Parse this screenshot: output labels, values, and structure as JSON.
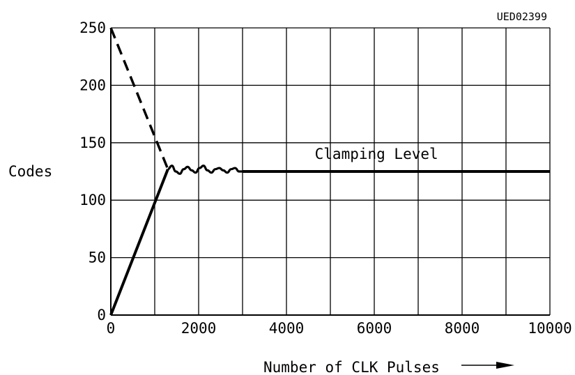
{
  "chart_data": {
    "type": "line",
    "reference_code": "UED02399",
    "title": "",
    "xlabel": "Number of CLK Pulses",
    "ylabel": "Codes",
    "xlim": [
      0,
      10000
    ],
    "ylim": [
      0,
      250
    ],
    "x_ticks": [
      0,
      2000,
      4000,
      6000,
      8000,
      10000
    ],
    "y_ticks": [
      0,
      50,
      100,
      150,
      200,
      250
    ],
    "x_tick_labels": [
      "0",
      "2000",
      "4000",
      "6000",
      "8000",
      "10000"
    ],
    "y_tick_labels": [
      "0",
      "50",
      "100",
      "150",
      "200",
      "250"
    ],
    "grid": true,
    "grid_x_step": 1000,
    "grid_y_step": 50,
    "annotations": [
      {
        "text": "Clamping Level",
        "x": 6050,
        "y": 136
      }
    ],
    "series": [
      {
        "style": "solid",
        "points": [
          [
            0,
            0
          ],
          [
            1300,
            127
          ]
        ]
      },
      {
        "style": "dashed",
        "points": [
          [
            0,
            250
          ],
          [
            1300,
            127
          ]
        ]
      },
      {
        "style": "oscillation",
        "points": [
          [
            1300,
            127
          ],
          [
            1390,
            130
          ],
          [
            1480,
            125
          ],
          [
            1570,
            123
          ],
          [
            1660,
            127
          ],
          [
            1750,
            129
          ],
          [
            1840,
            126
          ],
          [
            1930,
            124
          ],
          [
            2020,
            128
          ],
          [
            2110,
            130
          ],
          [
            2200,
            126
          ],
          [
            2290,
            124
          ],
          [
            2380,
            127
          ],
          [
            2470,
            128
          ],
          [
            2560,
            126
          ],
          [
            2650,
            124
          ],
          [
            2740,
            127
          ],
          [
            2830,
            128
          ],
          [
            2920,
            125
          ],
          [
            3000,
            125
          ]
        ]
      },
      {
        "style": "solid",
        "name": "Clamping Level",
        "points": [
          [
            3000,
            125
          ],
          [
            10000,
            125
          ]
        ]
      }
    ]
  }
}
